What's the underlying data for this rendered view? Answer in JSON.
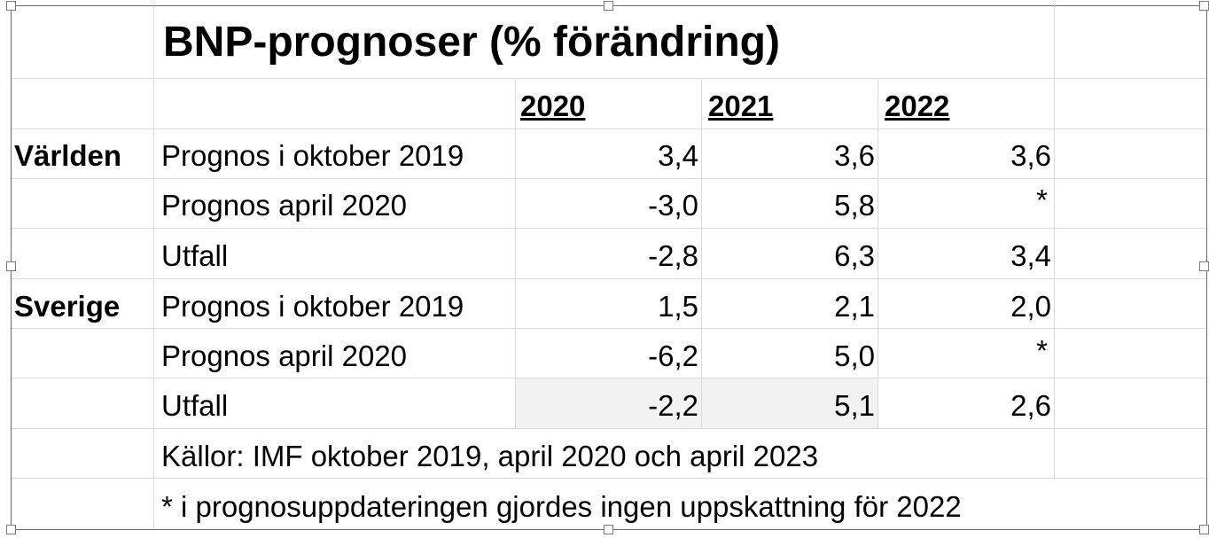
{
  "title": "BNP-prognoser (% förändring)",
  "years": [
    "2020",
    "2021",
    "2022"
  ],
  "regions": [
    {
      "name": "Världen",
      "rows": [
        {
          "label": "Prognos i oktober 2019",
          "values": [
            "3,4",
            "3,6",
            "3,6"
          ]
        },
        {
          "label": "Prognos april 2020",
          "values": [
            "-3,0",
            "5,8",
            "*"
          ]
        },
        {
          "label": "Utfall",
          "values": [
            "-2,8",
            "6,3",
            "3,4"
          ]
        }
      ]
    },
    {
      "name": "Sverige",
      "rows": [
        {
          "label": "Prognos i oktober 2019",
          "values": [
            "1,5",
            "2,1",
            "2,0"
          ]
        },
        {
          "label": "Prognos april 2020",
          "values": [
            "-6,2",
            "5,0",
            "*"
          ]
        },
        {
          "label": "Utfall",
          "values": [
            "-2,2",
            "5,1",
            "2,6"
          ]
        }
      ]
    }
  ],
  "source": "Källor: IMF oktober 2019, april 2020 och april 2023",
  "footnote": "* i prognosuppdateringen gjordes ingen uppskattning för 2022"
}
